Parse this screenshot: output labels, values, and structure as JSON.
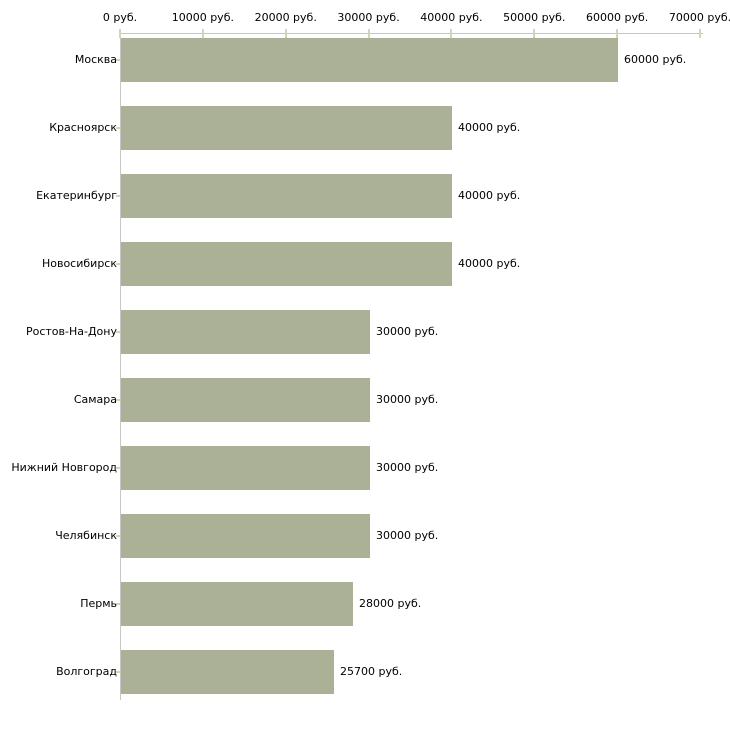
{
  "chart_data": {
    "type": "bar",
    "orientation": "horizontal",
    "title": "",
    "categories": [
      "Москва",
      "Красноярск",
      "Екатеринбург",
      "Новосибирск",
      "Ростов-На-Дону",
      "Самара",
      "Нижний Новгород",
      "Челябинск",
      "Пермь",
      "Волгоград"
    ],
    "values": [
      60000,
      40000,
      40000,
      40000,
      30000,
      30000,
      30000,
      30000,
      28000,
      25700
    ],
    "value_labels": [
      "60000 руб.",
      "40000 руб.",
      "40000 руб.",
      "40000 руб.",
      "30000 руб.",
      "30000 руб.",
      "30000 руб.",
      "30000 руб.",
      "28000 руб.",
      "25700 руб."
    ],
    "x_axis": {
      "position": "top",
      "min": 0,
      "max": 70000,
      "tick_values": [
        0,
        10000,
        20000,
        30000,
        40000,
        50000,
        60000,
        70000
      ],
      "tick_labels": [
        "0 руб.",
        "10000 руб.",
        "20000 руб.",
        "30000 руб.",
        "40000 руб.",
        "50000 руб.",
        "60000 руб.",
        "70000 руб."
      ],
      "unit": "руб."
    },
    "ylabel": "",
    "xlabel": "",
    "grid": false,
    "legend": false,
    "colors": {
      "bar": "#abb197",
      "axis_line": "#c6c6c6",
      "tick_mark": "#d4d7ae",
      "text": "#000000",
      "background": "#ffffff"
    }
  }
}
